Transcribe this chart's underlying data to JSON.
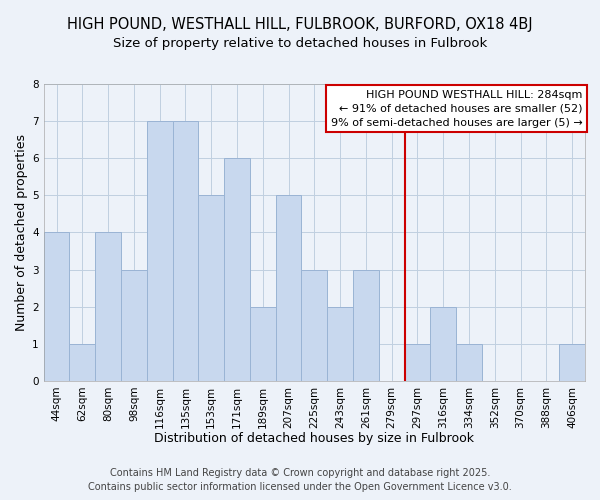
{
  "title": "HIGH POUND, WESTHALL HILL, FULBROOK, BURFORD, OX18 4BJ",
  "subtitle": "Size of property relative to detached houses in Fulbrook",
  "xlabel": "Distribution of detached houses by size in Fulbrook",
  "ylabel": "Number of detached properties",
  "bar_labels": [
    "44sqm",
    "62sqm",
    "80sqm",
    "98sqm",
    "116sqm",
    "135sqm",
    "153sqm",
    "171sqm",
    "189sqm",
    "207sqm",
    "225sqm",
    "243sqm",
    "261sqm",
    "279sqm",
    "297sqm",
    "316sqm",
    "334sqm",
    "352sqm",
    "370sqm",
    "388sqm",
    "406sqm"
  ],
  "bar_values": [
    4,
    1,
    4,
    3,
    7,
    7,
    5,
    6,
    2,
    5,
    3,
    2,
    3,
    0,
    1,
    2,
    1,
    0,
    0,
    0,
    1
  ],
  "bar_color": "#c8d8ee",
  "bar_edgecolor": "#9ab4d4",
  "grid_color": "#c0cfe0",
  "background_color": "#edf2f9",
  "vline_x": 13.5,
  "vline_color": "#cc0000",
  "ylim": [
    0,
    8
  ],
  "yticks": [
    0,
    1,
    2,
    3,
    4,
    5,
    6,
    7,
    8
  ],
  "legend_title": "HIGH POUND WESTHALL HILL: 284sqm",
  "legend_line1": "← 91% of detached houses are smaller (52)",
  "legend_line2": "9% of semi-detached houses are larger (5) →",
  "footer1": "Contains HM Land Registry data © Crown copyright and database right 2025.",
  "footer2": "Contains public sector information licensed under the Open Government Licence v3.0.",
  "title_fontsize": 10.5,
  "subtitle_fontsize": 9.5,
  "axis_label_fontsize": 9,
  "tick_fontsize": 7.5,
  "legend_fontsize": 8,
  "footer_fontsize": 7
}
